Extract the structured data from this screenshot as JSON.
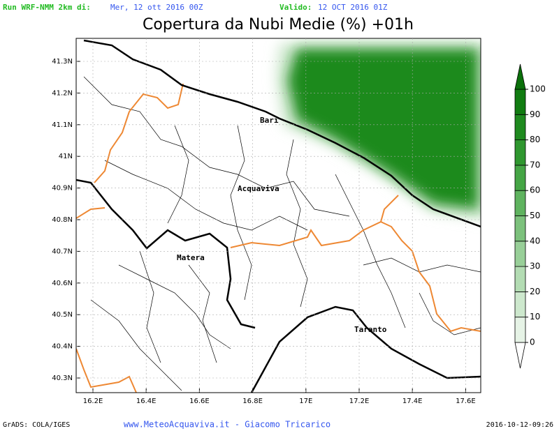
{
  "header": {
    "run_label": "Run WRF-NMM 2km di:",
    "run_date": "Mer, 12 ott 2016 00Z",
    "valid_label": "Valido:",
    "valid_date": "12 OCT 2016 01Z"
  },
  "title": "Copertura da Nubi Medie (%) +01h",
  "map": {
    "lon_ticks": [
      "16.2E",
      "16.4E",
      "16.6E",
      "16.8E",
      "17E",
      "17.2E",
      "17.4E",
      "17.6E"
    ],
    "lat_ticks": [
      "41.3N",
      "41.2N",
      "41.1N",
      "41N",
      "40.9N",
      "40.8N",
      "40.7N",
      "40.6N",
      "40.5N",
      "40.4N",
      "40.3N"
    ],
    "cities": [
      "Bari",
      "Acquaviva",
      "Matera",
      "Taranto"
    ]
  },
  "colorbar": {
    "levels": [
      0,
      10,
      20,
      30,
      40,
      50,
      60,
      70,
      80,
      90,
      100
    ],
    "colors": [
      "#ffffff",
      "#e6f3e6",
      "#cde8cd",
      "#b3dcb3",
      "#98cf98",
      "#7cc17c",
      "#5fb35f",
      "#45a545",
      "#2f972f",
      "#1f8a1f",
      "#117c11",
      "#0b700b"
    ]
  },
  "footer": {
    "left": "GrADS: COLA/IGES",
    "center": "www.MeteoAcquaviva.it - Giacomo Tricarico",
    "right": "2016-10-12-09:26"
  }
}
